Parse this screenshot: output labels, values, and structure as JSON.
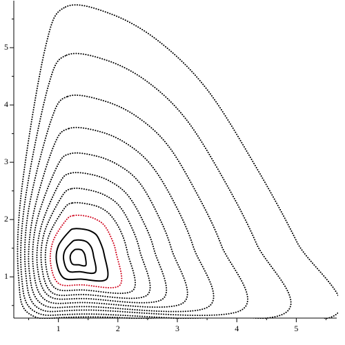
{
  "chart_data": {
    "type": "phase",
    "closed": true,
    "xlim": [
      0.25,
      5.68
    ],
    "ylim": [
      0.28,
      5.82
    ],
    "xticks": [
      1,
      2,
      3,
      4,
      5
    ],
    "yticks": [
      1,
      2,
      3,
      4,
      5
    ],
    "xminorticks": [
      0.5,
      1.5,
      2.5,
      3.5,
      4.5,
      5.5
    ],
    "yminorticks": [
      0.5,
      1.5,
      2.5,
      3.5,
      4.5,
      5.5
    ],
    "series": [
      {
        "color": "#000000",
        "line_style": "dotted",
        "x": [
          1.12,
          1.88,
          2.69,
          3.5,
          4.31,
          5.01,
          5.57,
          1.6,
          0.55,
          0.33,
          0.38,
          0.78
        ],
        "y": [
          5.71,
          5.59,
          5.11,
          4.27,
          2.94,
          1.61,
          0.29,
          0.3,
          0.33,
          1.0,
          2.5,
          5.0
        ]
      },
      {
        "color": "#000000",
        "line_style": "dotted",
        "x": [
          1.14,
          1.81,
          2.49,
          3.14,
          3.78,
          4.33,
          4.76,
          1.57,
          0.61,
          0.38,
          0.44,
          0.83
        ],
        "y": [
          4.87,
          4.78,
          4.41,
          3.76,
          2.7,
          1.58,
          0.34,
          0.35,
          0.39,
          1.03,
          2.33,
          4.33
        ]
      },
      {
        "color": "#000000",
        "line_style": "dotted",
        "x": [
          1.16,
          1.74,
          2.3,
          2.83,
          3.32,
          3.74,
          4.06,
          1.53,
          0.67,
          0.45,
          0.5,
          0.88
        ],
        "y": [
          4.15,
          4.08,
          3.81,
          3.31,
          2.47,
          1.55,
          0.41,
          0.42,
          0.45,
          1.07,
          2.18,
          3.74
        ]
      },
      {
        "color": "#000000",
        "line_style": "dotted",
        "x": [
          1.18,
          1.68,
          2.14,
          2.56,
          2.95,
          3.27,
          3.51,
          1.5,
          0.73,
          0.51,
          0.57,
          0.92
        ],
        "y": [
          3.59,
          3.54,
          3.33,
          2.95,
          2.29,
          1.52,
          0.47,
          0.48,
          0.52,
          1.1,
          2.05,
          3.28
        ]
      },
      {
        "color": "#000000",
        "line_style": "dotted",
        "x": [
          1.2,
          1.63,
          2.01,
          2.35,
          2.65,
          2.9,
          3.09,
          1.48,
          0.79,
          0.58,
          0.63,
          0.97
        ],
        "y": [
          3.15,
          3.11,
          2.95,
          2.66,
          2.13,
          1.49,
          0.54,
          0.55,
          0.59,
          1.13,
          1.94,
          2.91
        ]
      },
      {
        "color": "#000000",
        "line_style": "dotted",
        "x": [
          1.21,
          1.58,
          1.9,
          2.17,
          2.41,
          2.61,
          2.75,
          1.46,
          0.85,
          0.65,
          0.7,
          1.01
        ],
        "y": [
          2.81,
          2.78,
          2.65,
          2.42,
          2.0,
          1.47,
          0.61,
          0.62,
          0.66,
          1.15,
          1.84,
          2.62
        ]
      },
      {
        "color": "#000000",
        "line_style": "dotted",
        "x": [
          1.23,
          1.54,
          1.81,
          2.03,
          2.22,
          2.37,
          2.49,
          1.44,
          0.9,
          0.72,
          0.76,
          1.05
        ],
        "y": [
          2.54,
          2.51,
          2.41,
          2.23,
          1.89,
          1.45,
          0.68,
          0.69,
          0.72,
          1.18,
          1.76,
          2.39
        ]
      },
      {
        "color": "#000000",
        "line_style": "dotted",
        "x": [
          1.24,
          1.5,
          1.72,
          1.89,
          2.05,
          2.16,
          2.25,
          1.42,
          0.95,
          0.79,
          0.83,
          1.09
        ],
        "y": [
          2.29,
          2.27,
          2.2,
          2.06,
          1.79,
          1.43,
          0.76,
          0.77,
          0.8,
          1.2,
          1.69,
          2.18
        ]
      },
      {
        "color": "#d0021b",
        "line_style": "dotted",
        "x": [
          1.26,
          1.47,
          1.64,
          1.77,
          1.88,
          1.97,
          2.03,
          1.4,
          1.01,
          0.87,
          0.91,
          1.13
        ],
        "y": [
          2.07,
          2.06,
          2.0,
          1.9,
          1.7,
          1.42,
          0.85,
          0.86,
          0.88,
          1.23,
          1.62,
          1.99
        ]
      },
      {
        "color": "#000000",
        "line_style": "solid",
        "x": [
          1.27,
          1.43,
          1.54,
          1.64,
          1.71,
          1.77,
          1.81,
          1.38,
          1.09,
          0.97,
          1.0,
          1.18
        ],
        "y": [
          1.84,
          1.83,
          1.8,
          1.73,
          1.59,
          1.39,
          0.96,
          0.96,
          0.98,
          1.26,
          1.54,
          1.79
        ]
      },
      {
        "color": "#000000",
        "line_style": "solid",
        "x": [
          1.29,
          1.39,
          1.46,
          1.51,
          1.56,
          1.59,
          1.62,
          1.36,
          1.17,
          1.09,
          1.11,
          1.23
        ],
        "y": [
          1.64,
          1.64,
          1.62,
          1.58,
          1.5,
          1.37,
          1.08,
          1.09,
          1.1,
          1.29,
          1.46,
          1.61
        ]
      },
      {
        "color": "#000000",
        "line_style": "solid",
        "x": [
          1.31,
          1.35,
          1.39,
          1.41,
          1.43,
          1.45,
          1.46,
          1.34,
          1.24,
          1.2,
          1.21,
          1.27
        ],
        "y": [
          1.48,
          1.48,
          1.47,
          1.45,
          1.42,
          1.36,
          1.2,
          1.21,
          1.22,
          1.31,
          1.4,
          1.47
        ]
      }
    ]
  }
}
